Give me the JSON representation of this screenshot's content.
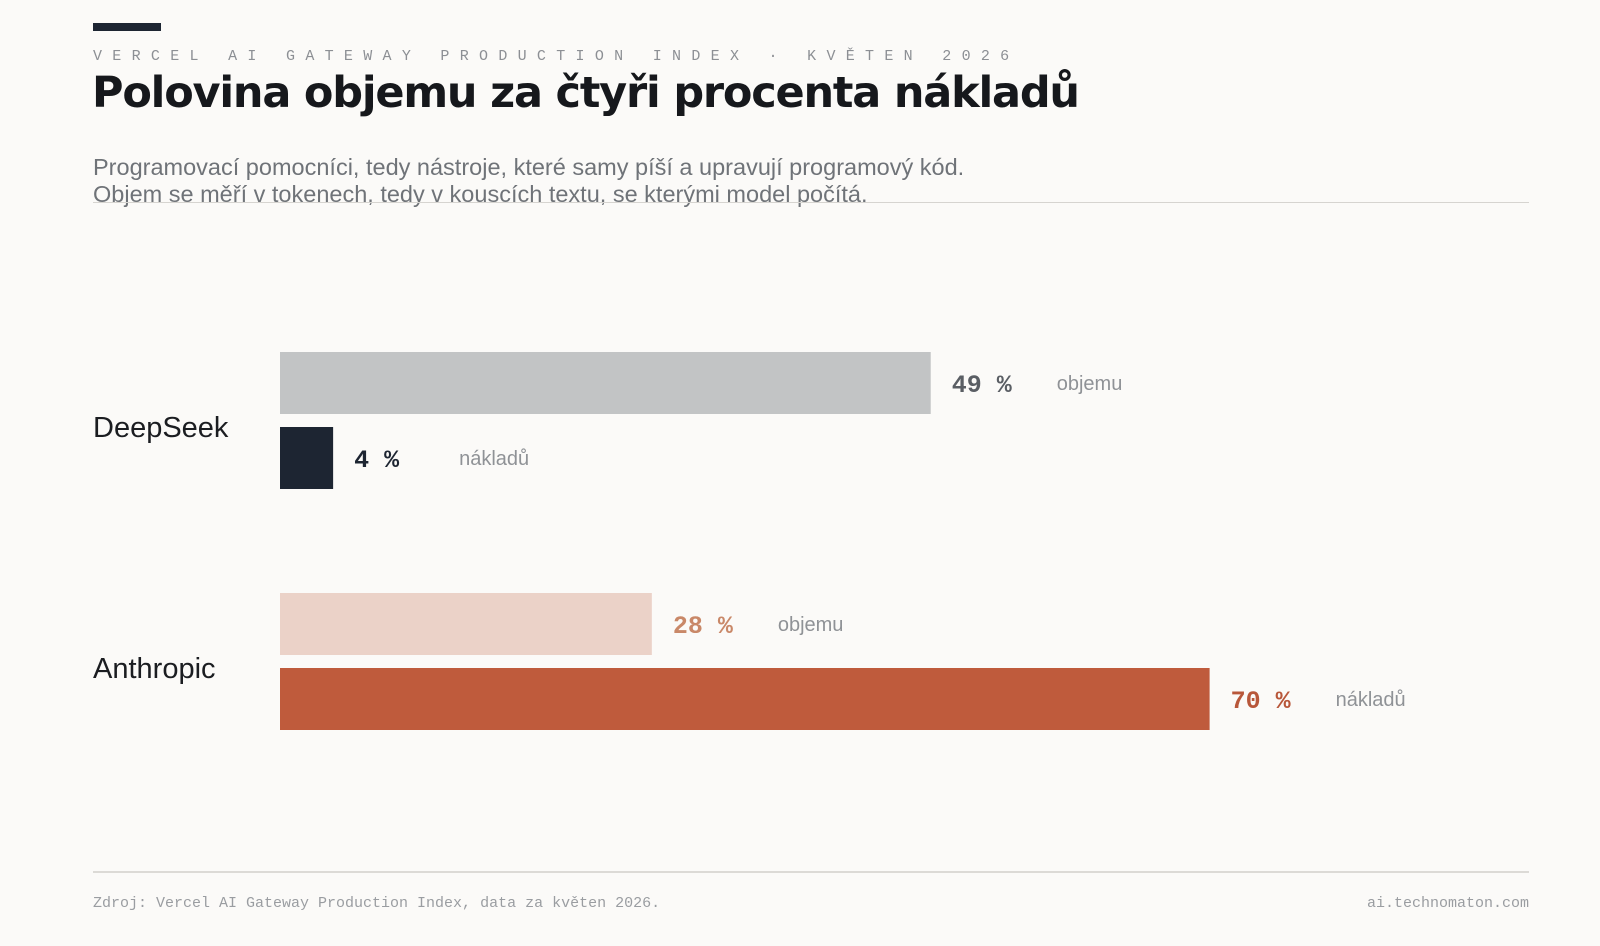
{
  "header": {
    "kicker": "VERCEL AI GATEWAY PRODUCTION INDEX · KVĚTEN 2026",
    "title": "Polovina objemu za čtyři procenta nákladů",
    "subtitle_line1": "Programovací pomocníci, tedy nástroje, které samy píší a upravují programový kód.",
    "subtitle_line2": "Objem se měří v tokenech, tedy v kouscích textu, se kterými model počítá."
  },
  "footer": {
    "source": "Zdroj: Vercel AI Gateway Production Index, data za květen 2026.",
    "site": "ai.technomaton.com"
  },
  "colors": {
    "deepseek_volume": "#c2c4c5",
    "deepseek_cost": "#1d2532",
    "anthropic_volume": "#ebd2c8",
    "anthropic_cost": "#bf5b3c",
    "deepseek_volume_text": "#5a5e64",
    "deepseek_cost_text": "#1d2532",
    "anthropic_volume_text": "#c98868",
    "anthropic_cost_text": "#b8573a"
  },
  "chart_data": {
    "type": "bar",
    "orientation": "horizontal",
    "unit": "%",
    "xlim": [
      0,
      100
    ],
    "categories": [
      "DeepSeek",
      "Anthropic"
    ],
    "series": [
      {
        "name": "objemu",
        "values": [
          49,
          28
        ]
      },
      {
        "name": "nákladů",
        "values": [
          4,
          70
        ]
      }
    ],
    "value_labels": [
      [
        "49 %",
        "4 %"
      ],
      [
        "28 %",
        "70 %"
      ]
    ]
  }
}
